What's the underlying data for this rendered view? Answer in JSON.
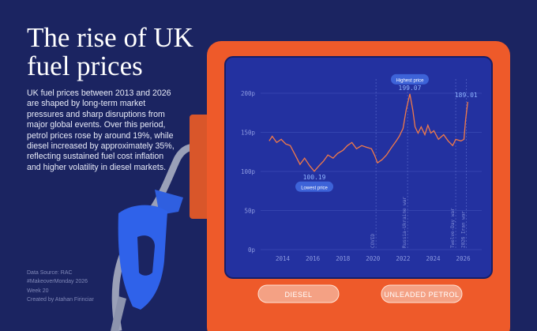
{
  "chart_data": {
    "type": "line",
    "title": "The rise of UK fuel prices",
    "subtitle": "UK fuel prices between 2013 and 2026 are shaped by long-term market pressures and sharp disruptions from major global events. Over this period, petrol prices rose by around 19%, while diesel increased by approximately 35%, reflecting sustained fuel cost inflation and higher volatility in diesel markets.",
    "notes": [
      "Data Source: RAC",
      "#MakeoverMonday 2026",
      "Week 20",
      "Created by Atahan Firinciar"
    ],
    "buttons": [
      "DIESEL",
      "UNLEADED PETROL"
    ],
    "x": [
      2013.1,
      2013.3,
      2013.6,
      2013.9,
      2014.2,
      2014.5,
      2014.8,
      2015.15,
      2015.45,
      2015.8,
      2016.1,
      2016.4,
      2016.7,
      2017.0,
      2017.35,
      2017.65,
      2018.0,
      2018.3,
      2018.6,
      2018.9,
      2019.25,
      2019.55,
      2019.9,
      2020.1,
      2020.3,
      2020.6,
      2020.9,
      2021.25,
      2021.55,
      2021.75,
      2022.0,
      2022.2,
      2022.45,
      2022.65,
      2022.8,
      2023.0,
      2023.2,
      2023.45,
      2023.65,
      2023.85,
      2024.05,
      2024.35,
      2024.7,
      2025.0,
      2025.3,
      2025.5,
      2025.85,
      2026.05,
      2026.15,
      2026.3
    ],
    "values": [
      139,
      145,
      137,
      141,
      135,
      133,
      122,
      109,
      117,
      107,
      100.19,
      107,
      113,
      121,
      117,
      123,
      127,
      133,
      137,
      129,
      133,
      131,
      129,
      121,
      111,
      115,
      121,
      131,
      139,
      145,
      155,
      178,
      199.07,
      178,
      157,
      149,
      157,
      147,
      159,
      149,
      152,
      141,
      147,
      139,
      133,
      141,
      139,
      141,
      164,
      189.01
    ],
    "color": "#f27a48",
    "min_label": "Lowest price",
    "max_label": "Highest price",
    "label_min_max_last": true,
    "events": [
      {
        "x": 2020.2,
        "label": "COVID"
      },
      {
        "x": 2022.3,
        "label": "Russia-Ukraine war"
      },
      {
        "x": 2025.5,
        "label": "Twelve-Day war"
      },
      {
        "x": 2026.2,
        "label": "2026 Iran war"
      }
    ],
    "xlim": [
      2013,
      2026.6
    ],
    "xticks": [
      2014,
      2016,
      2018,
      2020,
      2022,
      2024,
      2026
    ],
    "ylim": [
      0,
      200
    ],
    "yticks": [
      {
        "value": 0,
        "label": "0p"
      },
      {
        "value": 50,
        "label": "50p"
      },
      {
        "value": 100,
        "label": "100p"
      },
      {
        "value": 150,
        "label": "150p"
      },
      {
        "value": 200,
        "label": "200p"
      }
    ],
    "grid": true
  }
}
